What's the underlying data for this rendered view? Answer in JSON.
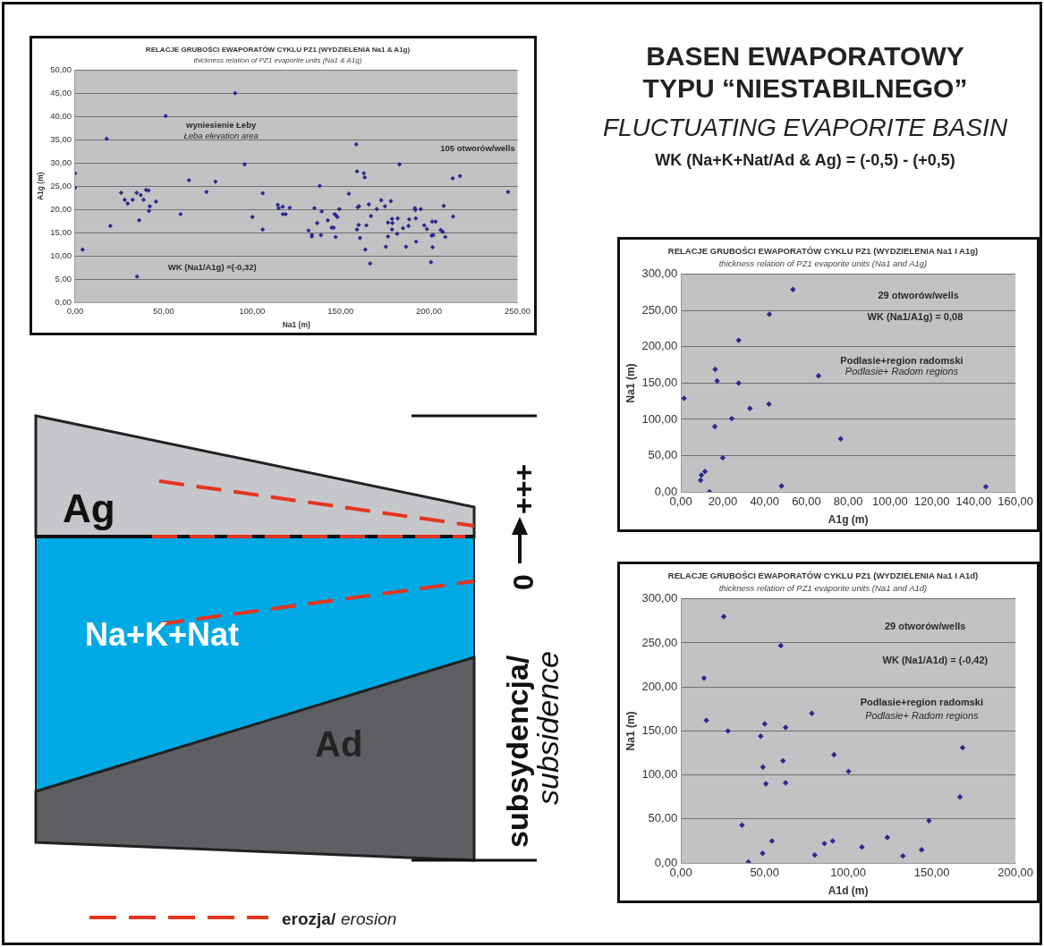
{
  "chart_data": [
    {
      "type": "scatter",
      "title": "RELACJE GRUBOŚCI EWAPORATÓW CYKLU PZ1 (WYDZIELENIA Na1 & A1g)",
      "subtitle": "thickness relation of PZ1 evaporite units (Na1 & A1g)",
      "xlabel": "Na1 (m)",
      "ylabel": "A1g (m)",
      "annotations": [
        "wyniesienie Łeby",
        "Łeba elevation area",
        "105 otworów/wells",
        "WK (Na1/A1g) =(-0,32)"
      ],
      "x": [
        0,
        0,
        4.2,
        17.8,
        19.9,
        26,
        28,
        29.7,
        32.5,
        34.8,
        35,
        36.2,
        37.1,
        38.7,
        40.1,
        41.5,
        41.7,
        42.2,
        45.7,
        51.2,
        59.6,
        64.3,
        74.2,
        79.3,
        90.4,
        95.8,
        100.2,
        106,
        106,
        114.5,
        115,
        117.3,
        117.4,
        119,
        121.3,
        158.9,
        183.3,
        159.3,
        163.1,
        163.7,
        213.4,
        217.5,
        244.7,
        138.2,
        154.7,
        135.2,
        139.4,
        149.3,
        131.9,
        133.8,
        133.8,
        138.9,
        136.8,
        142.8,
        146.6,
        147.3,
        148.2,
        145,
        146.1,
        147.2,
        159.3,
        160.2,
        161,
        160.4,
        159.7,
        164.6,
        166,
        167.2,
        164,
        166.7,
        170.5,
        173,
        175.1,
        178.4,
        176.8,
        179.3,
        179.1,
        182.3,
        179.1,
        182,
        176.8,
        175.6,
        185.3,
        187,
        188.4,
        188.8,
        192,
        192.3,
        195.3,
        192.5,
        192.7,
        197.3,
        198.8,
        201.8,
        203.7,
        201.5,
        202.4,
        202,
        201.1,
        206.6,
        207.8,
        209.2,
        208.3,
        213.6
      ],
      "values": [
        27.8,
        24.7,
        11.4,
        35.2,
        16.5,
        23.6,
        22.1,
        21.3,
        22.1,
        23.6,
        5.6,
        17.7,
        23.1,
        22.1,
        24.2,
        24.1,
        19.7,
        20.7,
        21.7,
        40.1,
        19,
        26.3,
        23.8,
        26,
        45,
        29.7,
        18.4,
        23.5,
        15.7,
        21,
        20.3,
        20.6,
        19,
        19,
        20.4,
        34,
        29.7,
        28.2,
        27.8,
        26.9,
        26.7,
        27.2,
        23.8,
        25.1,
        23.4,
        20.3,
        19.6,
        20.1,
        15.5,
        14.6,
        14.2,
        14.5,
        17.1,
        17.7,
        19,
        18.8,
        18.4,
        16.1,
        16.1,
        14.1,
        15.7,
        16.7,
        13.9,
        20.7,
        20.5,
        16.6,
        21.1,
        18.6,
        11.4,
        8.4,
        20.1,
        22,
        20.7,
        21.8,
        17.2,
        17.1,
        18,
        18.1,
        15.7,
        14.8,
        14.2,
        12,
        16,
        12,
        16.5,
        17.9,
        20.3,
        19.9,
        20.1,
        18.1,
        13.1,
        16.6,
        15.8,
        17.4,
        17.4,
        14.4,
        14.5,
        11.9,
        8.7,
        15.6,
        15.2,
        14.1,
        20.8,
        18.5
      ],
      "color": "#2b2a8c",
      "marker": "diamond",
      "grid": "y",
      "legend": false,
      "xlim": [
        0,
        250
      ],
      "xticks": [
        {
          "value": 0,
          "label": "0,00"
        },
        {
          "value": 50,
          "label": "50,00"
        },
        {
          "value": 100,
          "label": "100,00"
        },
        {
          "value": 150,
          "label": "150,00"
        },
        {
          "value": 200,
          "label": "200,00"
        },
        {
          "value": 250,
          "label": "250,00"
        }
      ],
      "ylim": [
        0,
        50
      ],
      "yticks": [
        {
          "value": 0,
          "label": "0,00"
        },
        {
          "value": 5,
          "label": "5,00"
        },
        {
          "value": 10,
          "label": "10,00"
        },
        {
          "value": 15,
          "label": "15,00"
        },
        {
          "value": 20,
          "label": "20,00"
        },
        {
          "value": 25,
          "label": "25,00"
        },
        {
          "value": 30,
          "label": "30,00"
        },
        {
          "value": 35,
          "label": "35,00"
        },
        {
          "value": 40,
          "label": "40,00"
        },
        {
          "value": 45,
          "label": "45,00"
        },
        {
          "value": 50,
          "label": "50,00"
        }
      ]
    },
    {
      "type": "other",
      "title": "BASEN EWAPORATOWY TYPU “NIESTABILNEGO”",
      "subtitle": "FLUCTUATING EVAPORITE BASIN",
      "annotations": [
        "WK (Na+K+Nat/Ad & Ag) = (-0,5) - (+0,5)"
      ]
    },
    {
      "type": "scatter",
      "title": "RELACJE GRUBOŚCI EWAPORATÓW CYKLU PZ1 (WYDZIELENIA Na1 I A1g)",
      "subtitle": "thickness relation of PZ1 evaporite units (Na1 and A1g)",
      "xlabel": "A1g (m)",
      "ylabel": "Na1 (m)",
      "annotations": [
        "29 otworów/wells",
        "WK (Na1/A1g) = 0,08",
        "Podlasie+region radomski",
        "Podlasie+ Radom regions"
      ],
      "x": [
        53.6,
        42.3,
        27.6,
        16.4,
        17.3,
        27.6,
        65.8,
        1.5,
        42.1,
        33,
        24.3,
        16.2,
        76.4,
        20,
        11.5,
        9.8,
        9.4,
        13.7,
        48.1,
        145.8
      ],
      "values": [
        279,
        245,
        209,
        169,
        153,
        150,
        160,
        129,
        121,
        115,
        101,
        90,
        73,
        47,
        28,
        23,
        16,
        0,
        8,
        7
      ],
      "color": "#2b2a8c",
      "marker": "diamond",
      "grid": "y",
      "legend": false,
      "xlim": [
        0,
        160
      ],
      "xticks": [
        {
          "value": 0,
          "label": "0,00"
        },
        {
          "value": 20,
          "label": "20,00"
        },
        {
          "value": 40,
          "label": "40,00"
        },
        {
          "value": 60,
          "label": "60,00"
        },
        {
          "value": 80,
          "label": "80,00"
        },
        {
          "value": 100,
          "label": "100,00"
        },
        {
          "value": 120,
          "label": "120,00"
        },
        {
          "value": 140,
          "label": "140,00"
        },
        {
          "value": 160,
          "label": "160,00"
        }
      ],
      "ylim": [
        0,
        300
      ],
      "yticks": [
        {
          "value": 0,
          "label": "0,00"
        },
        {
          "value": 50,
          "label": "50,00"
        },
        {
          "value": 100,
          "label": "100,00"
        },
        {
          "value": 150,
          "label": "150,00"
        },
        {
          "value": 200,
          "label": "200,00"
        },
        {
          "value": 250,
          "label": "250,00"
        },
        {
          "value": 300,
          "label": "300,00"
        }
      ]
    },
    {
      "type": "other",
      "annotations": [
        "Ag",
        "Na+K+Nat",
        "Ad",
        "subsydencja/",
        "subsidence",
        "0",
        "+++",
        "erozja/",
        "erosion"
      ]
    },
    {
      "type": "scatter",
      "title": "RELACJE GRUBOŚCI EWAPORATÓW CYKLU PZ1 (WYDZIELENIA Na1 I A1d)",
      "subtitle": "thickness relation of PZ1 evaporite units (Na1 and A1d)",
      "xlabel": "A1d (m)",
      "ylabel": "Na1 (m)",
      "annotations": [
        "29 otworów/wells",
        "WK (Na1/A1d) = (-0,42)",
        "Podlasie+region radomski",
        "Podlasie+ Radom regions"
      ],
      "x": [
        25.6,
        59.7,
        13.8,
        15.2,
        28.1,
        50.1,
        62.6,
        78.2,
        47.7,
        61,
        49,
        50.8,
        62.6,
        91.5,
        100.2,
        168.4,
        166.8,
        148.3,
        36.5,
        54.4,
        48.8,
        40.3,
        80,
        85.8,
        90.7,
        108.2,
        123.4,
        132.7,
        143.9
      ],
      "values": [
        280,
        247,
        210,
        162,
        150,
        158,
        154,
        170,
        144,
        116,
        109,
        90,
        91,
        123,
        104,
        131,
        75,
        48,
        43,
        25,
        11,
        1,
        9,
        22,
        25,
        18,
        29,
        8,
        15
      ],
      "color": "#2b2a8c",
      "marker": "diamond",
      "grid": "y",
      "legend": false,
      "xlim": [
        0,
        200
      ],
      "xticks": [
        {
          "value": 0,
          "label": "0,00"
        },
        {
          "value": 50,
          "label": "50,00"
        },
        {
          "value": 100,
          "label": "100,00"
        },
        {
          "value": 150,
          "label": "150,00"
        },
        {
          "value": 200,
          "label": "200,00"
        }
      ],
      "ylim": [
        0,
        300
      ],
      "yticks": [
        {
          "value": 0,
          "label": "0,00"
        },
        {
          "value": 50,
          "label": "50,00"
        },
        {
          "value": 100,
          "label": "100,00"
        },
        {
          "value": 150,
          "label": "150,00"
        },
        {
          "value": 200,
          "label": "200,00"
        },
        {
          "value": 250,
          "label": "250,00"
        },
        {
          "value": 300,
          "label": "300,00"
        }
      ]
    }
  ]
}
